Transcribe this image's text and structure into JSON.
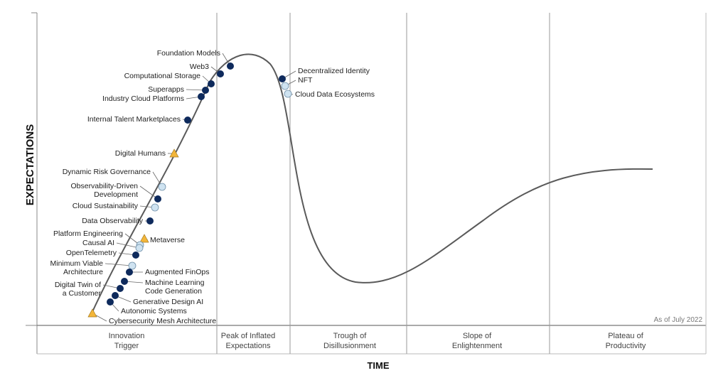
{
  "axes": {
    "y_label": "EXPECTATIONS",
    "x_label": "TIME"
  },
  "as_of": "As of July 2022",
  "phases": [
    [
      "Innovation",
      "Trigger"
    ],
    [
      "Peak of Inflated",
      "Expectations"
    ],
    [
      "Trough of",
      "Disillusionment"
    ],
    [
      "Slope of",
      "Enlightenment"
    ],
    [
      "Plateau of",
      "Productivity"
    ]
  ],
  "colors": {
    "dark": "#0e2a5c",
    "light": "#cfe3f1",
    "triangle": "#f3b63a",
    "curve": "#5a5a5a",
    "divider": "#9a9a9a"
  },
  "technologies": [
    {
      "name": "Foundation Models",
      "marker": "dark"
    },
    {
      "name": "Web3",
      "marker": "dark"
    },
    {
      "name": "Computational Storage",
      "marker": "dark"
    },
    {
      "name": "Superapps",
      "marker": "dark"
    },
    {
      "name": "Industry Cloud Platforms",
      "marker": "dark"
    },
    {
      "name": "Internal Talent Marketplaces",
      "marker": "dark"
    },
    {
      "name": "Digital Humans",
      "marker": "triangle"
    },
    {
      "name": "Dynamic Risk Governance",
      "marker": "light"
    },
    {
      "name": "Observability-Driven Development",
      "marker": "dark"
    },
    {
      "name": "Cloud Sustainability",
      "marker": "light"
    },
    {
      "name": "Data Observability",
      "marker": "dark"
    },
    {
      "name": "Metaverse",
      "marker": "triangle"
    },
    {
      "name": "Platform Engineering",
      "marker": "light"
    },
    {
      "name": "Causal AI",
      "marker": "light"
    },
    {
      "name": "OpenTelemetry",
      "marker": "dark"
    },
    {
      "name": "Minimum Viable Architecture",
      "marker": "light"
    },
    {
      "name": "Augmented FinOps",
      "marker": "dark"
    },
    {
      "name": "Machine Learning Code Generation",
      "marker": "dark"
    },
    {
      "name": "Digital Twin of a Customer",
      "marker": "dark"
    },
    {
      "name": "Generative Design AI",
      "marker": "dark"
    },
    {
      "name": "Autonomic Systems",
      "marker": "dark"
    },
    {
      "name": "Cybersecurity Mesh Architecture",
      "marker": "triangle"
    },
    {
      "name": "Decentralized Identity",
      "marker": "dark"
    },
    {
      "name": "NFT",
      "marker": "light"
    },
    {
      "name": "Cloud Data Ecosystems",
      "marker": "light"
    }
  ]
}
